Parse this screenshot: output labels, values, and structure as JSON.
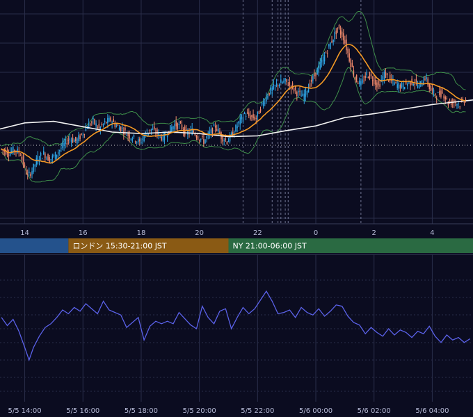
{
  "chart_data": [
    {
      "type": "candlestick",
      "title": "",
      "x_tick_labels": [
        "14",
        "16",
        "18",
        "20",
        "22",
        "0",
        "2",
        "4"
      ],
      "x_tick_hours": [
        14,
        16,
        18,
        20,
        22,
        24,
        26,
        28
      ],
      "x_range_hours": [
        13.15,
        29.4
      ],
      "ylim": [
        0,
        100
      ],
      "grid": true,
      "indicators": [
        "bollinger-bands",
        "moving-average",
        "long-moving-average"
      ],
      "close_series": [
        [
          13.2,
          78.0
        ],
        [
          13.5,
          73.0
        ],
        [
          13.7,
          77.0
        ],
        [
          13.9,
          72.0
        ],
        [
          14.0,
          58.0
        ],
        [
          14.15,
          42.0
        ],
        [
          14.3,
          50.0
        ],
        [
          14.5,
          66.0
        ],
        [
          14.7,
          72.0
        ],
        [
          14.9,
          64.0
        ],
        [
          15.1,
          70.0
        ],
        [
          15.4,
          84.0
        ],
        [
          15.6,
          92.0
        ],
        [
          15.8,
          88.0
        ],
        [
          16.0,
          96.0
        ],
        [
          16.2,
          108.0
        ],
        [
          16.4,
          114.0
        ],
        [
          16.6,
          104.0
        ],
        [
          16.8,
          112.0
        ],
        [
          17.0,
          116.0
        ],
        [
          17.2,
          108.0
        ],
        [
          17.4,
          104.0
        ],
        [
          17.6,
          96.0
        ],
        [
          17.8,
          92.0
        ],
        [
          18.0,
          86.0
        ],
        [
          18.2,
          98.0
        ],
        [
          18.4,
          104.0
        ],
        [
          18.6,
          98.0
        ],
        [
          18.8,
          92.0
        ],
        [
          19.0,
          102.0
        ],
        [
          19.2,
          110.0
        ],
        [
          19.4,
          108.0
        ],
        [
          19.6,
          98.0
        ],
        [
          19.8,
          102.0
        ],
        [
          20.0,
          94.0
        ],
        [
          20.2,
          88.0
        ],
        [
          20.4,
          98.0
        ],
        [
          20.6,
          108.0
        ],
        [
          20.8,
          94.0
        ],
        [
          21.0,
          88.0
        ],
        [
          21.2,
          98.0
        ],
        [
          21.4,
          112.0
        ],
        [
          21.6,
          124.0
        ],
        [
          21.8,
          120.0
        ],
        [
          22.0,
          118.0
        ],
        [
          22.2,
          136.0
        ],
        [
          22.4,
          150.0
        ],
        [
          22.6,
          158.0
        ],
        [
          22.8,
          164.0
        ],
        [
          23.0,
          166.0
        ],
        [
          23.2,
          160.0
        ],
        [
          23.4,
          152.0
        ],
        [
          23.6,
          146.0
        ],
        [
          23.8,
          160.0
        ],
        [
          24.0,
          174.0
        ],
        [
          24.2,
          188.0
        ],
        [
          24.4,
          204.0
        ],
        [
          24.6,
          220.0
        ],
        [
          24.8,
          236.0
        ],
        [
          25.0,
          224.0
        ],
        [
          25.2,
          196.0
        ],
        [
          25.4,
          170.0
        ],
        [
          25.6,
          162.0
        ],
        [
          25.8,
          176.0
        ],
        [
          26.0,
          170.0
        ],
        [
          26.2,
          160.0
        ],
        [
          26.4,
          176.0
        ],
        [
          26.6,
          168.0
        ],
        [
          26.8,
          162.0
        ],
        [
          27.0,
          160.0
        ],
        [
          27.2,
          164.0
        ],
        [
          27.4,
          166.0
        ],
        [
          27.6,
          160.0
        ],
        [
          27.8,
          172.0
        ],
        [
          28.0,
          154.0
        ],
        [
          28.2,
          148.0
        ],
        [
          28.4,
          152.0
        ],
        [
          28.6,
          138.0
        ],
        [
          28.8,
          140.0
        ],
        [
          29.0,
          136.0
        ],
        [
          29.2,
          144.0
        ]
      ],
      "long_ma_series": [
        [
          13.15,
          104.0
        ],
        [
          14.0,
          112.0
        ],
        [
          15.0,
          114.0
        ],
        [
          16.0,
          107.0
        ],
        [
          17.0,
          100.0
        ],
        [
          18.0,
          98.0
        ],
        [
          19.0,
          100.0
        ],
        [
          20.0,
          98.0
        ],
        [
          21.0,
          94.0
        ],
        [
          22.0,
          95.0
        ],
        [
          23.0,
          102.0
        ],
        [
          24.0,
          108.0
        ],
        [
          25.0,
          119.0
        ],
        [
          26.0,
          124.0
        ],
        [
          27.0,
          130.0
        ],
        [
          28.0,
          136.0
        ],
        [
          29.4,
          142.0
        ]
      ]
    },
    {
      "type": "line",
      "title": "",
      "series": [
        {
          "name": "",
          "color": "#5b62ea",
          "points": [
            [
              13.2,
              18.0
            ],
            [
              13.4,
              5.0
            ],
            [
              13.6,
              15.0
            ],
            [
              13.8,
              -4.0
            ],
            [
              14.0,
              -30.0
            ],
            [
              14.15,
              -50.0
            ],
            [
              14.3,
              -30.0
            ],
            [
              14.5,
              -12.0
            ],
            [
              14.7,
              2.0
            ],
            [
              14.9,
              8.0
            ],
            [
              15.1,
              18.0
            ],
            [
              15.3,
              30.0
            ],
            [
              15.5,
              24.0
            ],
            [
              15.7,
              34.0
            ],
            [
              15.9,
              28.0
            ],
            [
              16.1,
              40.0
            ],
            [
              16.3,
              32.0
            ],
            [
              16.5,
              24.0
            ],
            [
              16.7,
              44.0
            ],
            [
              16.9,
              30.0
            ],
            [
              17.1,
              26.0
            ],
            [
              17.3,
              22.0
            ],
            [
              17.5,
              2.0
            ],
            [
              17.7,
              10.0
            ],
            [
              17.9,
              18.0
            ],
            [
              18.1,
              -18.0
            ],
            [
              18.3,
              4.0
            ],
            [
              18.5,
              12.0
            ],
            [
              18.7,
              8.0
            ],
            [
              18.9,
              12.0
            ],
            [
              19.1,
              8.0
            ],
            [
              19.3,
              26.0
            ],
            [
              19.5,
              16.0
            ],
            [
              19.7,
              6.0
            ],
            [
              19.9,
              0.0
            ],
            [
              20.1,
              36.0
            ],
            [
              20.3,
              18.0
            ],
            [
              20.5,
              8.0
            ],
            [
              20.7,
              28.0
            ],
            [
              20.9,
              32.0
            ],
            [
              21.1,
              0.0
            ],
            [
              21.3,
              18.0
            ],
            [
              21.5,
              34.0
            ],
            [
              21.7,
              24.0
            ],
            [
              21.9,
              32.0
            ],
            [
              22.1,
              46.0
            ],
            [
              22.3,
              60.0
            ],
            [
              22.5,
              44.0
            ],
            [
              22.7,
              24.0
            ],
            [
              22.9,
              26.0
            ],
            [
              23.1,
              30.0
            ],
            [
              23.3,
              18.0
            ],
            [
              23.5,
              34.0
            ],
            [
              23.7,
              26.0
            ],
            [
              23.9,
              22.0
            ],
            [
              24.1,
              32.0
            ],
            [
              24.3,
              20.0
            ],
            [
              24.5,
              28.0
            ],
            [
              24.7,
              38.0
            ],
            [
              24.9,
              36.0
            ],
            [
              25.1,
              20.0
            ],
            [
              25.3,
              10.0
            ],
            [
              25.5,
              6.0
            ],
            [
              25.7,
              -8.0
            ],
            [
              25.9,
              2.0
            ],
            [
              26.1,
              -6.0
            ],
            [
              26.3,
              -12.0
            ],
            [
              26.5,
              0.0
            ],
            [
              26.7,
              -10.0
            ],
            [
              26.9,
              -2.0
            ],
            [
              27.1,
              -6.0
            ],
            [
              27.3,
              -14.0
            ],
            [
              27.5,
              -4.0
            ],
            [
              27.7,
              -8.0
            ],
            [
              27.9,
              4.0
            ],
            [
              28.1,
              -12.0
            ],
            [
              28.3,
              -22.0
            ],
            [
              28.5,
              -10.0
            ],
            [
              28.7,
              -18.0
            ],
            [
              28.9,
              -14.0
            ],
            [
              29.1,
              -22.0
            ],
            [
              29.3,
              -16.0
            ]
          ]
        }
      ]
    }
  ],
  "candle_colors": {
    "up": "#2fa6e6",
    "down": "#f28a6c",
    "ma": "#f59a25",
    "long_ma": "#f2f2f2",
    "bands": "#3f8f4a",
    "grid": "#2a2e4a",
    "grid_dashed": "#9aa0c2"
  },
  "sessions": [
    {
      "label": "",
      "color": "#24528c",
      "from_hour": 13.15,
      "to_hour": 15.5
    },
    {
      "label": "ロンドン 15:30-21:00 JST",
      "color": "#8a5a14",
      "from_hour": 15.5,
      "to_hour": 21.0
    },
    {
      "label": "NY 21:00-06:00 JST",
      "color": "#2a6a42",
      "from_hour": 21.0,
      "to_hour": 29.4
    }
  ],
  "bottom_ticks": [
    "5/5 14:00",
    "5/5 16:00",
    "5/5 18:00",
    "5/5 20:00",
    "5/5 22:00",
    "5/6 00:00",
    "5/6 02:00",
    "5/6 04:00"
  ],
  "bottom_tick_hours": [
    14,
    16,
    18,
    20,
    22,
    24,
    26,
    28
  ],
  "event_lines_hours": [
    21.5,
    22.5,
    22.7,
    22.8,
    22.95,
    23.05,
    25.55
  ]
}
